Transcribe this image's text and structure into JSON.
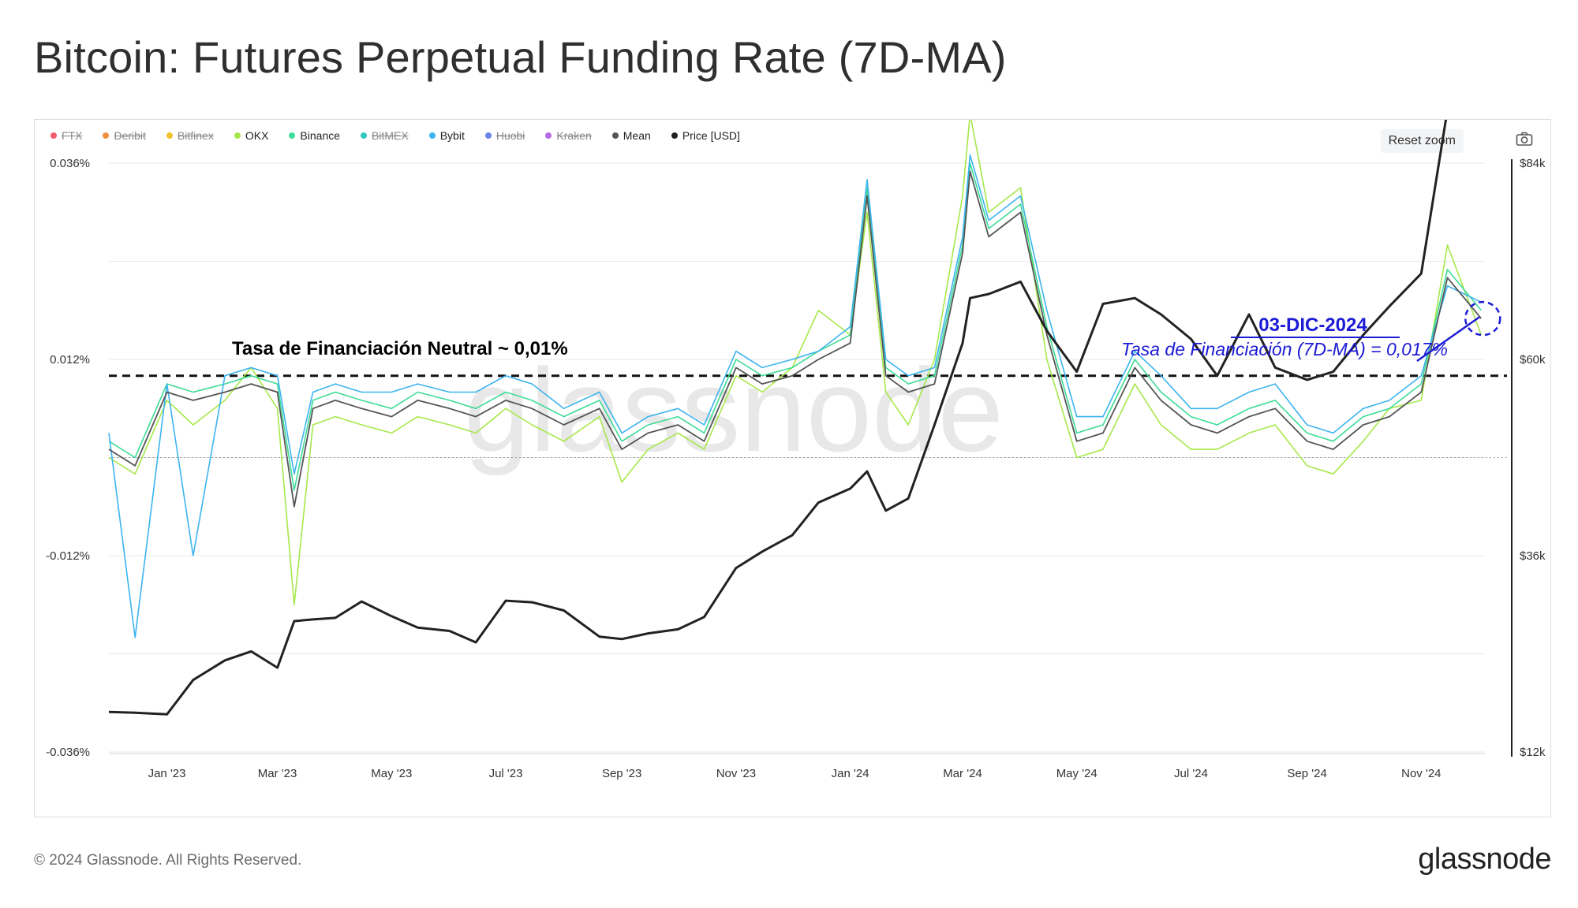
{
  "title": "Bitcoin: Futures Perpetual Funding Rate (7D-MA)",
  "toolbar": {
    "reset_zoom": "Reset zoom",
    "camera_icon": "camera-icon"
  },
  "footer": {
    "copyright": "© 2024 Glassnode. All Rights Reserved.",
    "logo": "glassnode"
  },
  "watermark": "glassnode",
  "legend": [
    {
      "label": "FTX",
      "color": "#f25c6e",
      "visible": false
    },
    {
      "label": "Deribit",
      "color": "#f0913f",
      "visible": false
    },
    {
      "label": "Bitfinex",
      "color": "#f2c22e",
      "visible": false
    },
    {
      "label": "OKX",
      "color": "#a6e84a",
      "visible": true
    },
    {
      "label": "Binance",
      "color": "#3ddc97",
      "visible": true
    },
    {
      "label": "BitMEX",
      "color": "#2fc7c0",
      "visible": false
    },
    {
      "label": "Bybit",
      "color": "#3cb4f0",
      "visible": true
    },
    {
      "label": "Huobi",
      "color": "#6b82e8",
      "visible": false
    },
    {
      "label": "Kraken",
      "color": "#b36be8",
      "visible": false
    },
    {
      "label": "Mean",
      "color": "#555555",
      "visible": true
    },
    {
      "label": "Price [USD]",
      "color": "#222222",
      "visible": true
    }
  ],
  "annotations": {
    "neutral": "Tasa de Financiación Neutral ~ 0,01%",
    "date": "03-DIC-2024",
    "rate": "Tasa de Financiación (7D-MA) = 0,017%"
  },
  "chart_data": {
    "type": "line",
    "x_range": [
      "2022-12-01",
      "2024-12-05"
    ],
    "x_tick_labels": [
      "Jan '23",
      "Mar '23",
      "May '23",
      "Jul '23",
      "Sep '23",
      "Nov '23",
      "Jan '24",
      "Mar '24",
      "May '24",
      "Jul '24",
      "Sep '24",
      "Nov '24"
    ],
    "y_left": {
      "range": [
        -0.036,
        0.036
      ],
      "unit": "%",
      "tick_labels": [
        "0.036%",
        "0.012%",
        "-0.012%",
        "-0.036%"
      ]
    },
    "y_right": {
      "range": [
        12000,
        84000
      ],
      "unit": "USD",
      "tick_labels": [
        "$84k",
        "$60k",
        "$36k",
        "$12k"
      ]
    },
    "reference_lines": [
      {
        "value": 0.01,
        "style": "dashed",
        "label": "Tasa de Financiación Neutral ~ 0,01%"
      },
      {
        "value": 0.0,
        "style": "dotted"
      }
    ],
    "highlight": {
      "date": "2024-12-03",
      "value": 0.017
    },
    "x": [
      "2022-12-01",
      "2022-12-15",
      "2023-01-01",
      "2023-01-15",
      "2023-02-01",
      "2023-02-15",
      "2023-03-01",
      "2023-03-10",
      "2023-03-20",
      "2023-04-01",
      "2023-04-15",
      "2023-05-01",
      "2023-05-15",
      "2023-06-01",
      "2023-06-15",
      "2023-07-01",
      "2023-07-15",
      "2023-08-01",
      "2023-08-20",
      "2023-09-01",
      "2023-09-15",
      "2023-10-01",
      "2023-10-15",
      "2023-11-01",
      "2023-11-15",
      "2023-12-01",
      "2023-12-15",
      "2024-01-01",
      "2024-01-10",
      "2024-01-20",
      "2024-02-01",
      "2024-02-15",
      "2024-03-01",
      "2024-03-05",
      "2024-03-15",
      "2024-04-01",
      "2024-04-15",
      "2024-05-01",
      "2024-05-15",
      "2024-06-01",
      "2024-06-15",
      "2024-07-01",
      "2024-07-15",
      "2024-08-01",
      "2024-08-15",
      "2024-09-01",
      "2024-09-15",
      "2024-10-01",
      "2024-10-15",
      "2024-11-01",
      "2024-11-15",
      "2024-12-03"
    ],
    "series": [
      {
        "name": "Price [USD]",
        "axis": "right",
        "values": [
          16900,
          16800,
          16600,
          20800,
          23200,
          24300,
          22300,
          28000,
          28200,
          28400,
          30400,
          28600,
          27200,
          26800,
          25400,
          30500,
          30300,
          29300,
          26100,
          25800,
          26500,
          27000,
          28500,
          34500,
          36500,
          38500,
          42500,
          44200,
          46300,
          41500,
          43000,
          52000,
          62000,
          67500,
          68000,
          69500,
          63500,
          58500,
          66800,
          67500,
          65500,
          62500,
          58000,
          65500,
          59000,
          57500,
          58500,
          63000,
          66500,
          70500,
          90500,
          96000
        ]
      },
      {
        "name": "Mean",
        "axis": "left",
        "values": [
          0.001,
          -0.001,
          0.008,
          0.007,
          0.008,
          0.009,
          0.008,
          -0.006,
          0.006,
          0.007,
          0.006,
          0.005,
          0.007,
          0.006,
          0.005,
          0.007,
          0.006,
          0.004,
          0.006,
          0.001,
          0.003,
          0.004,
          0.002,
          0.011,
          0.009,
          0.01,
          0.012,
          0.014,
          0.032,
          0.01,
          0.008,
          0.009,
          0.025,
          0.035,
          0.027,
          0.03,
          0.015,
          0.002,
          0.003,
          0.011,
          0.007,
          0.004,
          0.003,
          0.005,
          0.006,
          0.002,
          0.001,
          0.004,
          0.005,
          0.008,
          0.022,
          0.017
        ]
      },
      {
        "name": "OKX",
        "axis": "left",
        "values": [
          0.0,
          -0.002,
          0.007,
          0.004,
          0.007,
          0.011,
          0.006,
          -0.018,
          0.004,
          0.005,
          0.004,
          0.003,
          0.005,
          0.004,
          0.003,
          0.006,
          0.004,
          0.002,
          0.005,
          -0.003,
          0.001,
          0.003,
          0.001,
          0.01,
          0.008,
          0.011,
          0.018,
          0.015,
          0.03,
          0.008,
          0.004,
          0.012,
          0.032,
          0.042,
          0.03,
          0.033,
          0.012,
          0.0,
          0.001,
          0.009,
          0.004,
          0.001,
          0.001,
          0.003,
          0.004,
          -0.001,
          -0.002,
          0.002,
          0.006,
          0.007,
          0.026,
          0.015
        ]
      },
      {
        "name": "Binance",
        "axis": "left",
        "values": [
          0.002,
          0.0,
          0.009,
          0.008,
          0.009,
          0.01,
          0.009,
          -0.004,
          0.007,
          0.008,
          0.007,
          0.006,
          0.008,
          0.007,
          0.006,
          0.008,
          0.007,
          0.005,
          0.007,
          0.002,
          0.004,
          0.005,
          0.003,
          0.012,
          0.01,
          0.011,
          0.013,
          0.015,
          0.033,
          0.011,
          0.009,
          0.01,
          0.026,
          0.036,
          0.028,
          0.031,
          0.016,
          0.003,
          0.004,
          0.012,
          0.008,
          0.005,
          0.004,
          0.006,
          0.007,
          0.003,
          0.002,
          0.005,
          0.006,
          0.009,
          0.023,
          0.018
        ]
      },
      {
        "name": "Bybit",
        "axis": "left",
        "values": [
          0.003,
          -0.022,
          0.009,
          -0.012,
          0.01,
          0.011,
          0.01,
          -0.002,
          0.008,
          0.009,
          0.008,
          0.008,
          0.009,
          0.008,
          0.008,
          0.01,
          0.009,
          0.006,
          0.008,
          0.003,
          0.005,
          0.006,
          0.004,
          0.013,
          0.011,
          0.012,
          0.013,
          0.016,
          0.034,
          0.012,
          0.01,
          0.011,
          0.027,
          0.037,
          0.029,
          0.032,
          0.018,
          0.005,
          0.005,
          0.013,
          0.01,
          0.006,
          0.006,
          0.008,
          0.009,
          0.004,
          0.003,
          0.006,
          0.007,
          0.01,
          0.021,
          0.019
        ]
      }
    ]
  }
}
